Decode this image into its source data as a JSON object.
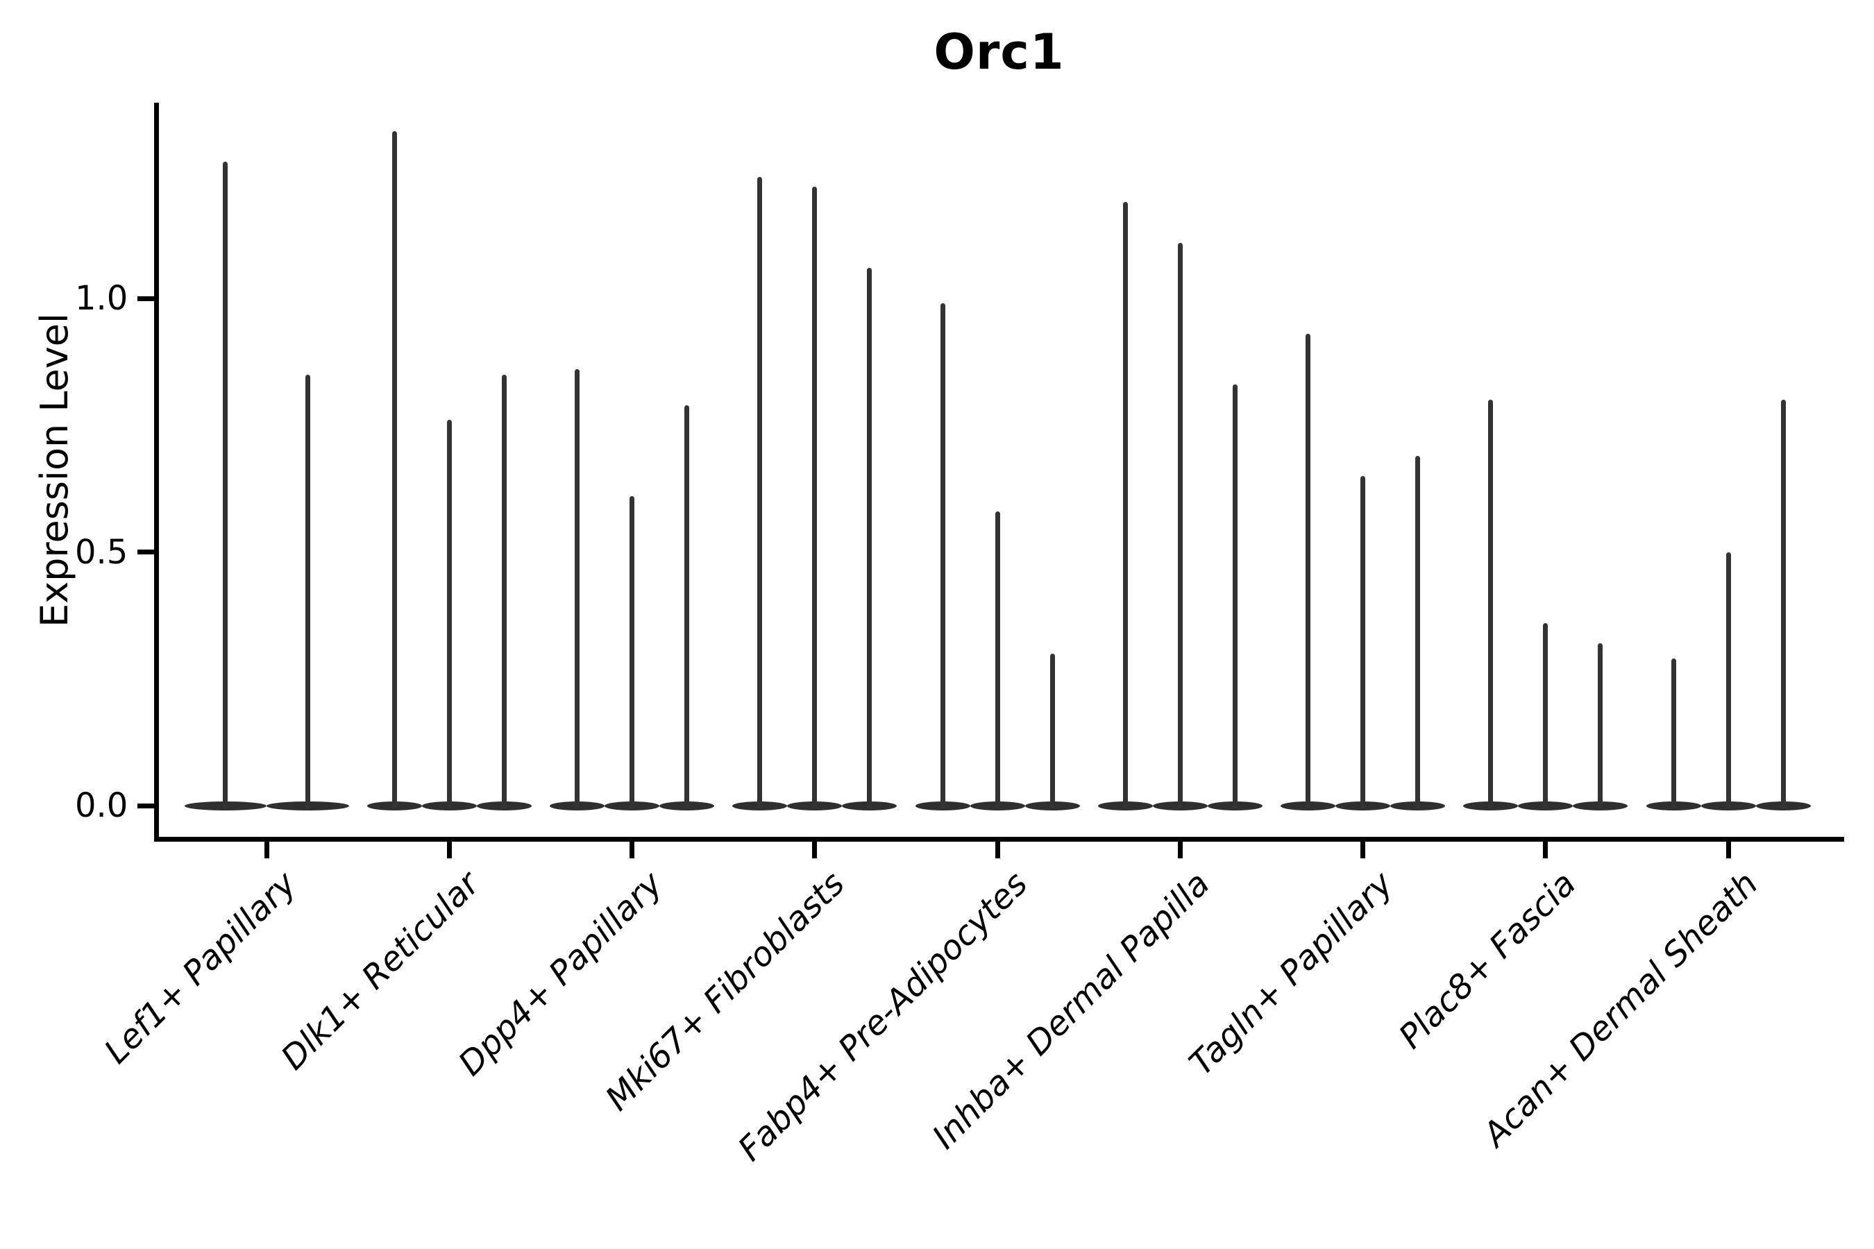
{
  "title": "Orc1",
  "chart_data": {
    "type": "violin",
    "title": "Orc1",
    "xlabel": "",
    "ylabel": "Expression Level",
    "yticks": [
      0.0,
      0.5,
      1.0
    ],
    "ylim": [
      -0.07,
      1.39
    ],
    "grid": false,
    "legend": "none",
    "categories": [
      "Lef1+ Papillary",
      "Dlk1+ Reticular",
      "Dpp4+ Papillary",
      "Mki67+ Fibroblasts",
      "Fabp4+ Pre-Adipocytes",
      "Inhba+ Dermal Papilla",
      "Tagln+ Papillary",
      "Plac8+ Fascia",
      "Acan+ Dermal Sheath"
    ],
    "violin_max_expression": [
      [
        1.27,
        0.85
      ],
      [
        1.33,
        0.76,
        0.85
      ],
      [
        0.86,
        0.61,
        0.79
      ],
      [
        1.24,
        1.22,
        1.06
      ],
      [
        0.99,
        0.58,
        0.3
      ],
      [
        1.19,
        1.11,
        0.83
      ],
      [
        0.93,
        0.65,
        0.69
      ],
      [
        0.8,
        0.36,
        0.32
      ],
      [
        0.29,
        0.5,
        0.8
      ]
    ],
    "violin_min_expression": 0.0
  },
  "colors": {
    "violin": "#333333",
    "axis": "#000000",
    "text": "#000000",
    "background": "#ffffff"
  }
}
